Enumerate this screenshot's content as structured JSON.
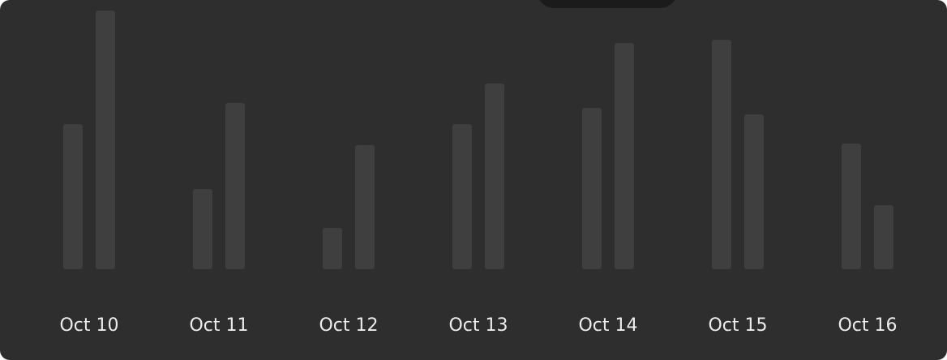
{
  "chart_data": {
    "type": "bar",
    "categories": [
      "Oct 10",
      "Oct 11",
      "Oct 12",
      "Oct 13",
      "Oct 14",
      "Oct 15",
      "Oct 16"
    ],
    "series": [
      {
        "values": [
          179,
          99,
          51,
          179,
          199,
          283,
          155
        ]
      },
      {
        "values": [
          319,
          205,
          153,
          229,
          279,
          191,
          79
        ]
      }
    ],
    "ylim": [
      0,
      320
    ],
    "grid": false,
    "colors": {
      "background": "#2e2e2e",
      "bar": "#3f3f3f",
      "label": "#ececec",
      "tab": "#1b1b1b"
    }
  }
}
